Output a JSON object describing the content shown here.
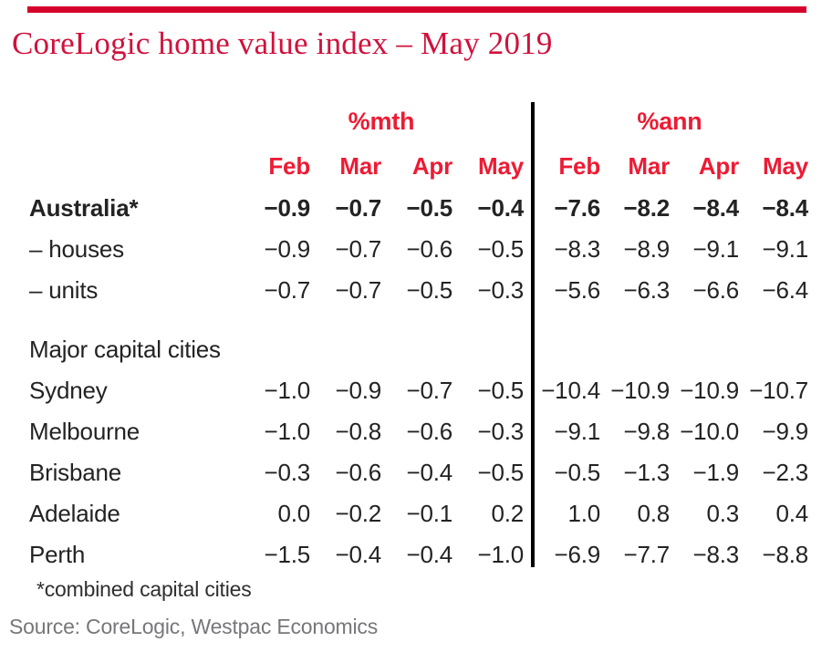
{
  "title": "CoreLogic home value index – May 2019",
  "footnote": "*combined capital cities",
  "source": "Source: CoreLogic, Westpac Economics",
  "colors": {
    "brand_red": "#d5002b",
    "header_red": "#ed1b34",
    "title_red": "#d0113c",
    "text_black": "#232323",
    "source_gray": "#76777a",
    "divider_black": "#000000"
  },
  "chart_data": {
    "type": "table",
    "title": "CoreLogic home value index – May 2019",
    "group_headers": [
      "%mth",
      "%ann"
    ],
    "groups": [
      {
        "name": "%mth",
        "columns": [
          "Feb",
          "Mar",
          "Apr",
          "May"
        ]
      },
      {
        "name": "%ann",
        "columns": [
          "Feb",
          "Mar",
          "Apr",
          "May"
        ]
      }
    ],
    "rows": [
      {
        "label": "Australia*",
        "bold": true,
        "mth": [
          "-0.9",
          "-0.7",
          "-0.5",
          "-0.4"
        ],
        "ann": [
          "-7.6",
          "-8.2",
          "-8.4",
          "-8.4"
        ]
      },
      {
        "label": "– houses",
        "mth": [
          "-0.9",
          "-0.7",
          "-0.6",
          "-0.5"
        ],
        "ann": [
          "-8.3",
          "-8.9",
          "-9.1",
          "-9.1"
        ]
      },
      {
        "label": "– units",
        "mth": [
          "-0.7",
          "-0.7",
          "-0.5",
          "-0.3"
        ],
        "ann": [
          "-5.6",
          "-6.3",
          "-6.6",
          "-6.4"
        ]
      },
      {
        "label": "Major capital cities",
        "section": true
      },
      {
        "label": "Sydney",
        "mth": [
          "-1.0",
          "-0.9",
          "-0.7",
          "-0.5"
        ],
        "ann": [
          "-10.4",
          "-10.9",
          "-10.9",
          "-10.7"
        ]
      },
      {
        "label": "Melbourne",
        "mth": [
          "-1.0",
          "-0.8",
          "-0.6",
          "-0.3"
        ],
        "ann": [
          "-9.1",
          "-9.8",
          "-10.0",
          "-9.9"
        ]
      },
      {
        "label": "Brisbane",
        "mth": [
          "-0.3",
          "-0.6",
          "-0.4",
          "-0.5"
        ],
        "ann": [
          "-0.5",
          "-1.3",
          "-1.9",
          "-2.3"
        ]
      },
      {
        "label": "Adelaide",
        "mth": [
          "0.0",
          "-0.2",
          "-0.1",
          "0.2"
        ],
        "ann": [
          "1.0",
          "0.8",
          "0.3",
          "0.4"
        ]
      },
      {
        "label": "Perth",
        "mth": [
          "-1.5",
          "-0.4",
          "-0.4",
          "-1.0"
        ],
        "ann": [
          "-6.9",
          "-7.7",
          "-8.3",
          "-8.8"
        ]
      }
    ]
  }
}
